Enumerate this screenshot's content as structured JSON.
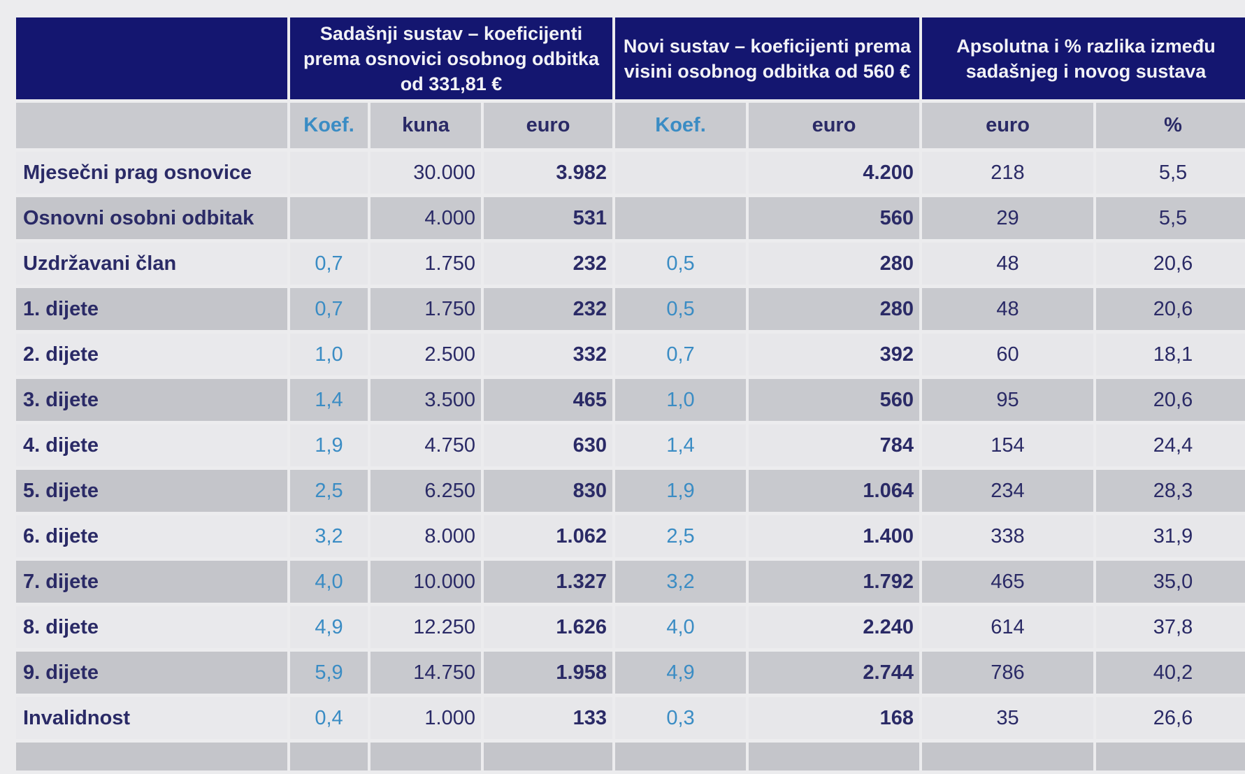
{
  "header": {
    "current": "Sadašnji sustav – koeficijenti prema osnovici osobnog odbitka od 331,81 €",
    "new": "Novi sustav – koeficijenti prema visini osobnog odbitka od 560 €",
    "diff": "Apsolutna i % razlika između sadašnjeg i novog sustava"
  },
  "subheader": [
    "",
    "Koef.",
    "kuna",
    "euro",
    "Koef.",
    "euro",
    "euro",
    "%"
  ],
  "rows": [
    [
      "Mjesečni prag osnovice",
      "",
      "30.000",
      "3.982",
      "",
      "4.200",
      "218",
      "5,5"
    ],
    [
      "Osnovni osobni odbitak",
      "",
      "4.000",
      "531",
      "",
      "560",
      "29",
      "5,5"
    ],
    [
      "Uzdržavani član",
      "0,7",
      "1.750",
      "232",
      "0,5",
      "280",
      "48",
      "20,6"
    ],
    [
      "1. dijete",
      "0,7",
      "1.750",
      "232",
      "0,5",
      "280",
      "48",
      "20,6"
    ],
    [
      "2. dijete",
      "1,0",
      "2.500",
      "332",
      "0,7",
      "392",
      "60",
      "18,1"
    ],
    [
      "3. dijete",
      "1,4",
      "3.500",
      "465",
      "1,0",
      "560",
      "95",
      "20,6"
    ],
    [
      "4. dijete",
      "1,9",
      "4.750",
      "630",
      "1,4",
      "784",
      "154",
      "24,4"
    ],
    [
      "5. dijete",
      "2,5",
      "6.250",
      "830",
      "1,9",
      "1.064",
      "234",
      "28,3"
    ],
    [
      "6. dijete",
      "3,2",
      "8.000",
      "1.062",
      "2,5",
      "1.400",
      "338",
      "31,9"
    ],
    [
      "7. dijete",
      "4,0",
      "10.000",
      "1.327",
      "3,2",
      "1.792",
      "465",
      "35,0"
    ],
    [
      "8. dijete",
      "4,9",
      "12.250",
      "1.626",
      "4,0",
      "2.240",
      "614",
      "37,8"
    ],
    [
      "9. dijete",
      "5,9",
      "14.750",
      "1.958",
      "4,9",
      "2.744",
      "786",
      "40,2"
    ],
    [
      "Invalidnost",
      "0,4",
      "1.000",
      "133",
      "0,3",
      "168",
      "35",
      "26,6"
    ]
  ]
}
